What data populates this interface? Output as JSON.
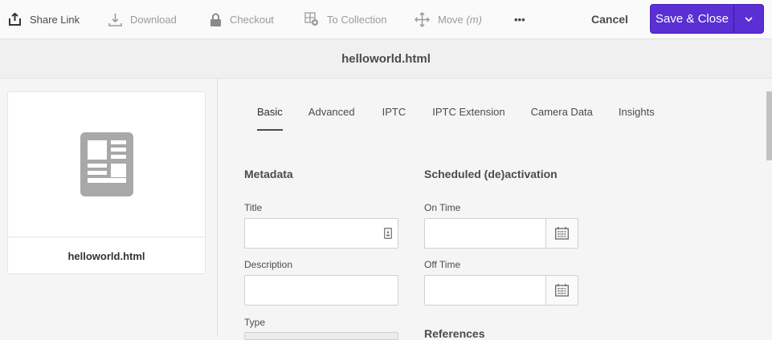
{
  "toolbar": {
    "share_link": "Share Link",
    "download": "Download",
    "checkout": "Checkout",
    "to_collection": "To Collection",
    "move": "Move",
    "move_shortcut": "(m)",
    "more": "•••",
    "cancel": "Cancel",
    "save_close": "Save & Close"
  },
  "header": {
    "title": "helloworld.html"
  },
  "asset": {
    "name": "helloworld.html"
  },
  "tabs": [
    {
      "label": "Basic"
    },
    {
      "label": "Advanced"
    },
    {
      "label": "IPTC"
    },
    {
      "label": "IPTC Extension"
    },
    {
      "label": "Camera Data"
    },
    {
      "label": "Insights"
    }
  ],
  "metadata": {
    "heading": "Metadata",
    "title_label": "Title",
    "title_value": "",
    "description_label": "Description",
    "description_value": "",
    "type_label": "Type"
  },
  "scheduled": {
    "heading": "Scheduled (de)activation",
    "on_time_label": "On Time",
    "on_time_value": "",
    "off_time_label": "Off Time",
    "off_time_value": ""
  },
  "references": {
    "heading": "References"
  },
  "colors": {
    "accent": "#5a2fd4"
  }
}
